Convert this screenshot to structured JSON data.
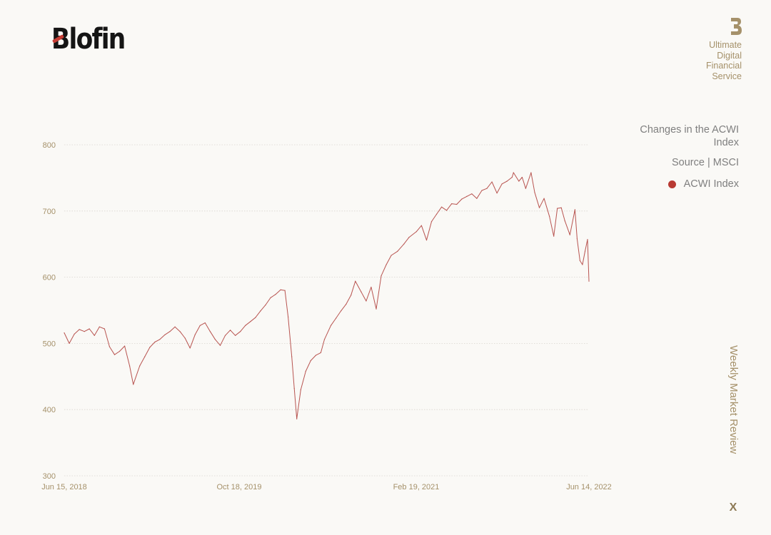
{
  "brand": {
    "name": "Blofin",
    "tagline": [
      "Ultimate",
      "Digital",
      "Financial",
      "Service"
    ]
  },
  "icons": {
    "brand_mark": "b-monogram-icon",
    "close": "close-icon"
  },
  "legend": {
    "title": "Changes in the ACWI Index",
    "source": "Source | MSCI",
    "series_label": "ACWI Index"
  },
  "side_title": "Weekly Market Review",
  "close_label": "X",
  "colors": {
    "series": "#b85450",
    "legend_dot": "#b83a33",
    "accent": "#a5916a",
    "background": "#faf9f6"
  },
  "chart_data": {
    "type": "line",
    "title": "Changes in the ACWI Index",
    "xlabel": "",
    "ylabel": "",
    "x_ticks": [
      "Jun 15, 2018",
      "Oct 18, 2019",
      "Feb 19, 2021",
      "Jun 14, 2022"
    ],
    "y_ticks": [
      300,
      400,
      500,
      600,
      700,
      800
    ],
    "ylim": [
      300,
      800
    ],
    "xlim": [
      "2018-06-15",
      "2022-06-14"
    ],
    "grid": "horizontal",
    "legend_position": "right",
    "series": [
      {
        "name": "ACWI Index",
        "x": [
          "2018-06-15",
          "2018-06-29",
          "2018-07-13",
          "2018-07-27",
          "2018-08-10",
          "2018-08-24",
          "2018-09-07",
          "2018-09-21",
          "2018-10-05",
          "2018-10-19",
          "2018-11-02",
          "2018-11-16",
          "2018-11-30",
          "2018-12-14",
          "2018-12-24",
          "2019-01-11",
          "2019-01-25",
          "2019-02-08",
          "2019-02-22",
          "2019-03-08",
          "2019-03-22",
          "2019-04-05",
          "2019-04-19",
          "2019-05-03",
          "2019-05-17",
          "2019-05-31",
          "2019-06-14",
          "2019-06-28",
          "2019-07-12",
          "2019-07-26",
          "2019-08-09",
          "2019-08-23",
          "2019-09-06",
          "2019-09-20",
          "2019-10-04",
          "2019-10-18",
          "2019-11-01",
          "2019-11-15",
          "2019-11-29",
          "2019-12-13",
          "2019-12-27",
          "2020-01-10",
          "2020-01-24",
          "2020-02-07",
          "2020-02-19",
          "2020-02-28",
          "2020-03-09",
          "2020-03-16",
          "2020-03-23",
          "2020-04-03",
          "2020-04-17",
          "2020-05-01",
          "2020-05-15",
          "2020-05-29",
          "2020-06-08",
          "2020-06-26",
          "2020-07-10",
          "2020-07-24",
          "2020-08-07",
          "2020-08-21",
          "2020-09-02",
          "2020-09-18",
          "2020-10-02",
          "2020-10-16",
          "2020-10-30",
          "2020-11-13",
          "2020-11-27",
          "2020-12-11",
          "2020-12-28",
          "2021-01-15",
          "2021-01-29",
          "2021-02-19",
          "2021-03-05",
          "2021-03-19",
          "2021-04-02",
          "2021-04-16",
          "2021-04-30",
          "2021-05-14",
          "2021-05-28",
          "2021-06-11",
          "2021-06-25",
          "2021-07-09",
          "2021-07-23",
          "2021-08-06",
          "2021-08-20",
          "2021-09-03",
          "2021-09-17",
          "2021-10-01",
          "2021-10-15",
          "2021-10-29",
          "2021-11-12",
          "2021-11-16",
          "2021-12-01",
          "2021-12-10",
          "2021-12-20",
          "2022-01-04",
          "2022-01-14",
          "2022-01-27",
          "2022-02-09",
          "2022-02-24",
          "2022-03-08",
          "2022-03-18",
          "2022-03-29",
          "2022-04-08",
          "2022-04-22",
          "2022-05-06",
          "2022-05-12",
          "2022-05-20",
          "2022-05-27",
          "2022-06-03",
          "2022-06-10",
          "2022-06-14"
        ],
        "y": [
          516,
          500,
          514,
          521,
          518,
          522,
          512,
          525,
          522,
          495,
          483,
          488,
          496,
          466,
          438,
          466,
          480,
          494,
          502,
          506,
          513,
          518,
          525,
          518,
          508,
          493,
          513,
          527,
          531,
          518,
          506,
          497,
          512,
          520,
          512,
          518,
          527,
          533,
          539,
          549,
          558,
          569,
          574,
          581,
          580,
          540,
          480,
          432,
          386,
          430,
          458,
          474,
          482,
          486,
          506,
          527,
          538,
          549,
          559,
          573,
          594,
          578,
          564,
          585,
          552,
          602,
          619,
          633,
          639,
          650,
          660,
          669,
          678,
          656,
          684,
          695,
          706,
          701,
          711,
          710,
          718,
          722,
          726,
          719,
          731,
          734,
          744,
          727,
          741,
          745,
          751,
          758,
          745,
          751,
          734,
          758,
          728,
          705,
          719,
          692,
          662,
          704,
          705,
          685,
          664,
          702,
          658,
          625,
          619,
          639,
          657,
          594
        ]
      }
    ]
  }
}
